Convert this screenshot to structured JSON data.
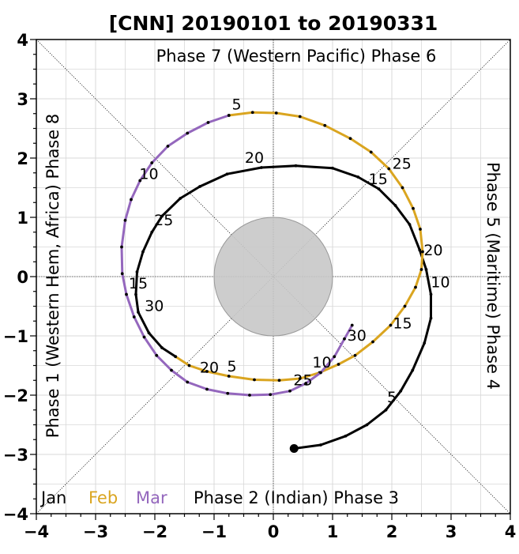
{
  "chart_data": {
    "type": "line",
    "title": "[CNN] 20190101 to 20190331",
    "xlim": [
      -4,
      4
    ],
    "ylim": [
      -4,
      4
    ],
    "xticks": [
      "−4",
      "−3",
      "−2",
      "−1",
      "0",
      "1",
      "2",
      "3",
      "4"
    ],
    "yticks": [
      "−4",
      "−3",
      "−2",
      "−1",
      "0",
      "1",
      "2",
      "3",
      "4"
    ],
    "grid": true,
    "phase_labels": {
      "top": "Phase 7 (Western Pacific) Phase 6",
      "bottom": "Phase 2 (Indian) Phase 3",
      "left": "Phase 1 (Western Hem, Africa) Phase 8",
      "right": "Phase 5 (Maritime) Phase 4"
    },
    "legend": [
      {
        "name": "Jan",
        "color": "#000000"
      },
      {
        "name": "Feb",
        "color": "#DAA520"
      },
      {
        "name": "Mar",
        "color": "#9467BD"
      }
    ],
    "series": [
      {
        "name": "Jan",
        "color": "#000000",
        "points": [
          [
            0.35,
            -2.9
          ],
          [
            0.8,
            -2.84
          ],
          [
            1.22,
            -2.69
          ],
          [
            1.58,
            -2.5
          ],
          [
            1.9,
            -2.25
          ],
          [
            2.15,
            -1.93
          ],
          [
            2.35,
            -1.58
          ],
          [
            2.55,
            -1.12
          ],
          [
            2.66,
            -0.7
          ],
          [
            2.66,
            -0.3
          ],
          [
            2.58,
            0.12
          ],
          [
            2.47,
            0.45
          ],
          [
            2.3,
            0.88
          ],
          [
            2.06,
            1.2
          ],
          [
            1.78,
            1.48
          ],
          [
            1.43,
            1.68
          ],
          [
            1.0,
            1.83
          ],
          [
            0.38,
            1.87
          ],
          [
            -0.2,
            1.84
          ],
          [
            -0.78,
            1.73
          ],
          [
            -1.24,
            1.52
          ],
          [
            -1.57,
            1.32
          ],
          [
            -1.88,
            1.02
          ],
          [
            -2.05,
            0.75
          ],
          [
            -2.2,
            0.42
          ],
          [
            -2.3,
            0.08
          ],
          [
            -2.32,
            -0.3
          ],
          [
            -2.28,
            -0.6
          ],
          [
            -2.1,
            -0.95
          ],
          [
            -1.88,
            -1.2
          ],
          [
            -1.65,
            -1.35
          ]
        ]
      },
      {
        "name": "Feb",
        "color": "#DAA520",
        "points": [
          [
            -1.65,
            -1.35
          ],
          [
            -1.42,
            -1.5
          ],
          [
            -1.12,
            -1.6
          ],
          [
            -0.75,
            -1.68
          ],
          [
            -0.32,
            -1.74
          ],
          [
            0.1,
            -1.75
          ],
          [
            0.45,
            -1.72
          ],
          [
            0.78,
            -1.62
          ],
          [
            1.1,
            -1.48
          ],
          [
            1.38,
            -1.33
          ],
          [
            1.68,
            -1.1
          ],
          [
            1.98,
            -0.82
          ],
          [
            2.22,
            -0.5
          ],
          [
            2.4,
            -0.18
          ],
          [
            2.5,
            0.12
          ],
          [
            2.52,
            0.42
          ],
          [
            2.48,
            0.8
          ],
          [
            2.36,
            1.15
          ],
          [
            2.18,
            1.5
          ],
          [
            1.95,
            1.82
          ],
          [
            1.65,
            2.1
          ],
          [
            1.3,
            2.33
          ],
          [
            0.87,
            2.55
          ],
          [
            0.45,
            2.7
          ],
          [
            0.05,
            2.76
          ],
          [
            -0.35,
            2.77
          ],
          [
            -0.75,
            2.72
          ]
        ]
      },
      {
        "name": "Mar",
        "color": "#9467BD",
        "points": [
          [
            -0.75,
            2.72
          ],
          [
            -1.1,
            2.6
          ],
          [
            -1.45,
            2.42
          ],
          [
            -1.78,
            2.2
          ],
          [
            -2.05,
            1.92
          ],
          [
            -2.25,
            1.62
          ],
          [
            -2.4,
            1.3
          ],
          [
            -2.5,
            0.95
          ],
          [
            -2.56,
            0.5
          ],
          [
            -2.55,
            0.05
          ],
          [
            -2.48,
            -0.3
          ],
          [
            -2.35,
            -0.68
          ],
          [
            -2.18,
            -1.02
          ],
          [
            -1.97,
            -1.33
          ],
          [
            -1.72,
            -1.58
          ],
          [
            -1.45,
            -1.78
          ],
          [
            -1.12,
            -1.9
          ],
          [
            -0.77,
            -1.97
          ],
          [
            -0.4,
            -2.0
          ],
          [
            -0.05,
            -1.99
          ],
          [
            0.28,
            -1.93
          ],
          [
            0.55,
            -1.8
          ],
          [
            0.8,
            -1.62
          ],
          [
            1.03,
            -1.35
          ],
          [
            1.2,
            -1.05
          ],
          [
            1.33,
            -0.82
          ]
        ]
      }
    ],
    "day_labels": [
      {
        "text": "5",
        "x": 2.0,
        "y": -2.12
      },
      {
        "text": "10",
        "x": 2.82,
        "y": -0.18
      },
      {
        "text": "15",
        "x": 1.77,
        "y": 1.56
      },
      {
        "text": "20",
        "x": -0.32,
        "y": 1.92
      },
      {
        "text": "25",
        "x": -1.85,
        "y": 0.87
      },
      {
        "text": "30",
        "x": -2.01,
        "y": -0.58
      },
      {
        "text": "5",
        "x": -0.7,
        "y": -1.6
      },
      {
        "text": "10",
        "x": 0.82,
        "y": -1.53
      },
      {
        "text": "15",
        "x": 2.18,
        "y": -0.87
      },
      {
        "text": "20",
        "x": 2.7,
        "y": 0.36
      },
      {
        "text": "25",
        "x": 2.17,
        "y": 1.82
      },
      {
        "text": "5",
        "x": -0.62,
        "y": 2.82
      },
      {
        "text": "10",
        "x": -2.1,
        "y": 1.65
      },
      {
        "text": "15",
        "x": -2.28,
        "y": -0.2
      },
      {
        "text": "20",
        "x": -1.08,
        "y": -1.62
      },
      {
        "text": "25",
        "x": 0.5,
        "y": -1.83
      },
      {
        "text": "30",
        "x": 1.41,
        "y": -1.08
      }
    ],
    "start_point": {
      "x": 0.35,
      "y": -2.9
    },
    "inner_circle_radius": 1,
    "inner_circle_color": "#c8c8c8"
  }
}
